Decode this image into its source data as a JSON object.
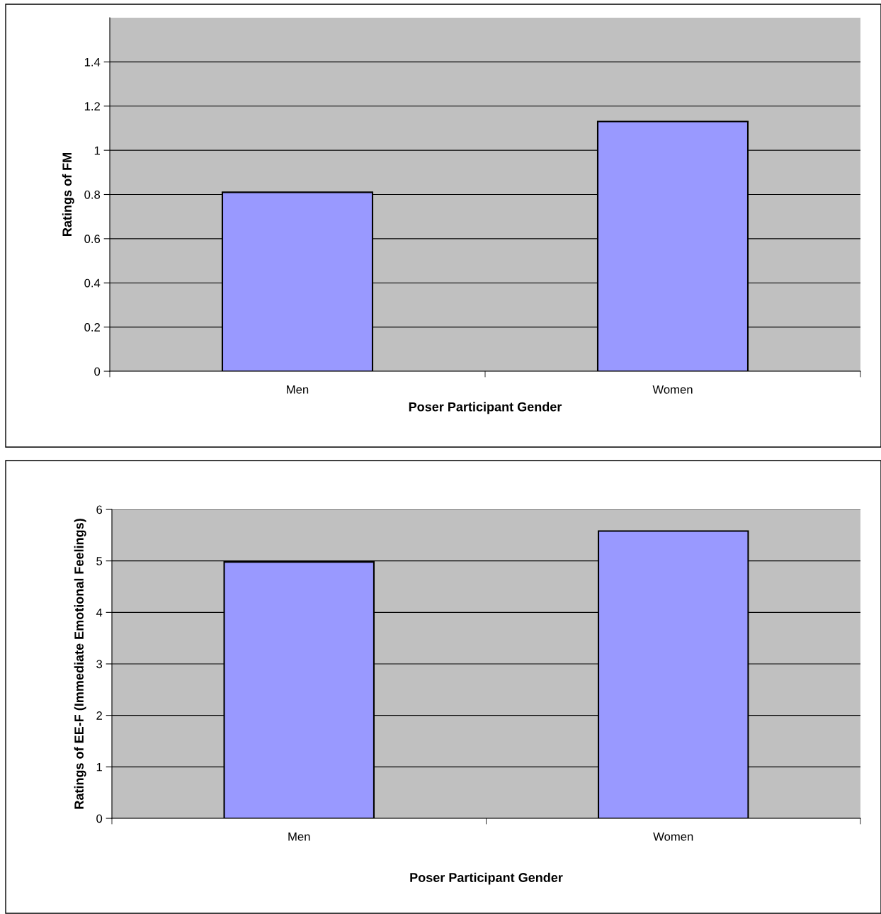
{
  "chart_data": [
    {
      "type": "bar",
      "xlabel": "Poser Participant Gender",
      "ylabel": "Ratings of FM",
      "categories": [
        "Men",
        "Women"
      ],
      "values": [
        0.81,
        1.13
      ],
      "color": "#9999ff",
      "ylim": [
        0,
        1.6
      ],
      "yticks": [
        0,
        0.2,
        0.4,
        0.6,
        0.8,
        1,
        1.2,
        1.4
      ],
      "grid": "y"
    },
    {
      "type": "bar",
      "xlabel": "Poser Participant Gender",
      "ylabel": "Ratings of EE-F (Immediate Emotional Feelings)",
      "categories": [
        "Men",
        "Women"
      ],
      "values": [
        4.98,
        5.58
      ],
      "color": "#9999ff",
      "ylim": [
        0,
        6
      ],
      "yticks": [
        0,
        1,
        2,
        3,
        4,
        5,
        6
      ],
      "grid": "y"
    }
  ]
}
